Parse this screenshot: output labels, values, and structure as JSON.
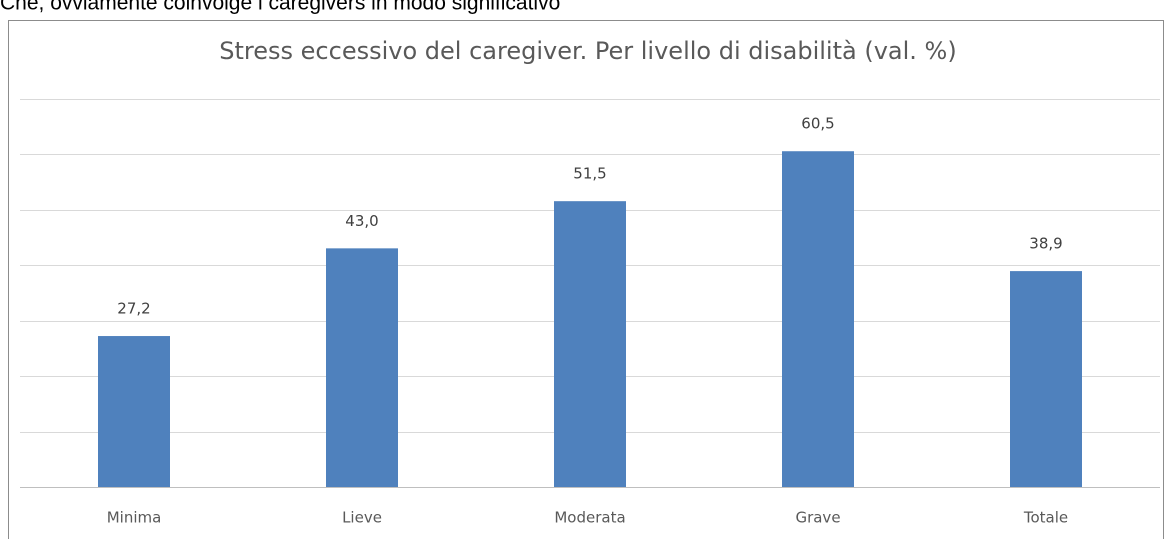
{
  "caption": "Che, ovviamente coinvolge i caregivers in modo significativo",
  "chart_data": {
    "type": "bar",
    "title": "Stress eccessivo del caregiver. Per livello di disabilità (val. %)",
    "categories": [
      "Minima",
      "Lieve",
      "Moderata",
      "Grave",
      "Totale"
    ],
    "values": [
      27.2,
      43.0,
      51.5,
      60.5,
      38.9
    ],
    "value_labels": [
      "27,2",
      "43,0",
      "51,5",
      "60,5",
      "38,9"
    ],
    "color": "#4f81bd",
    "ylim": [
      0,
      70
    ],
    "yticks": [
      0,
      10,
      20,
      30,
      40,
      50,
      60,
      70
    ],
    "grid": true
  }
}
